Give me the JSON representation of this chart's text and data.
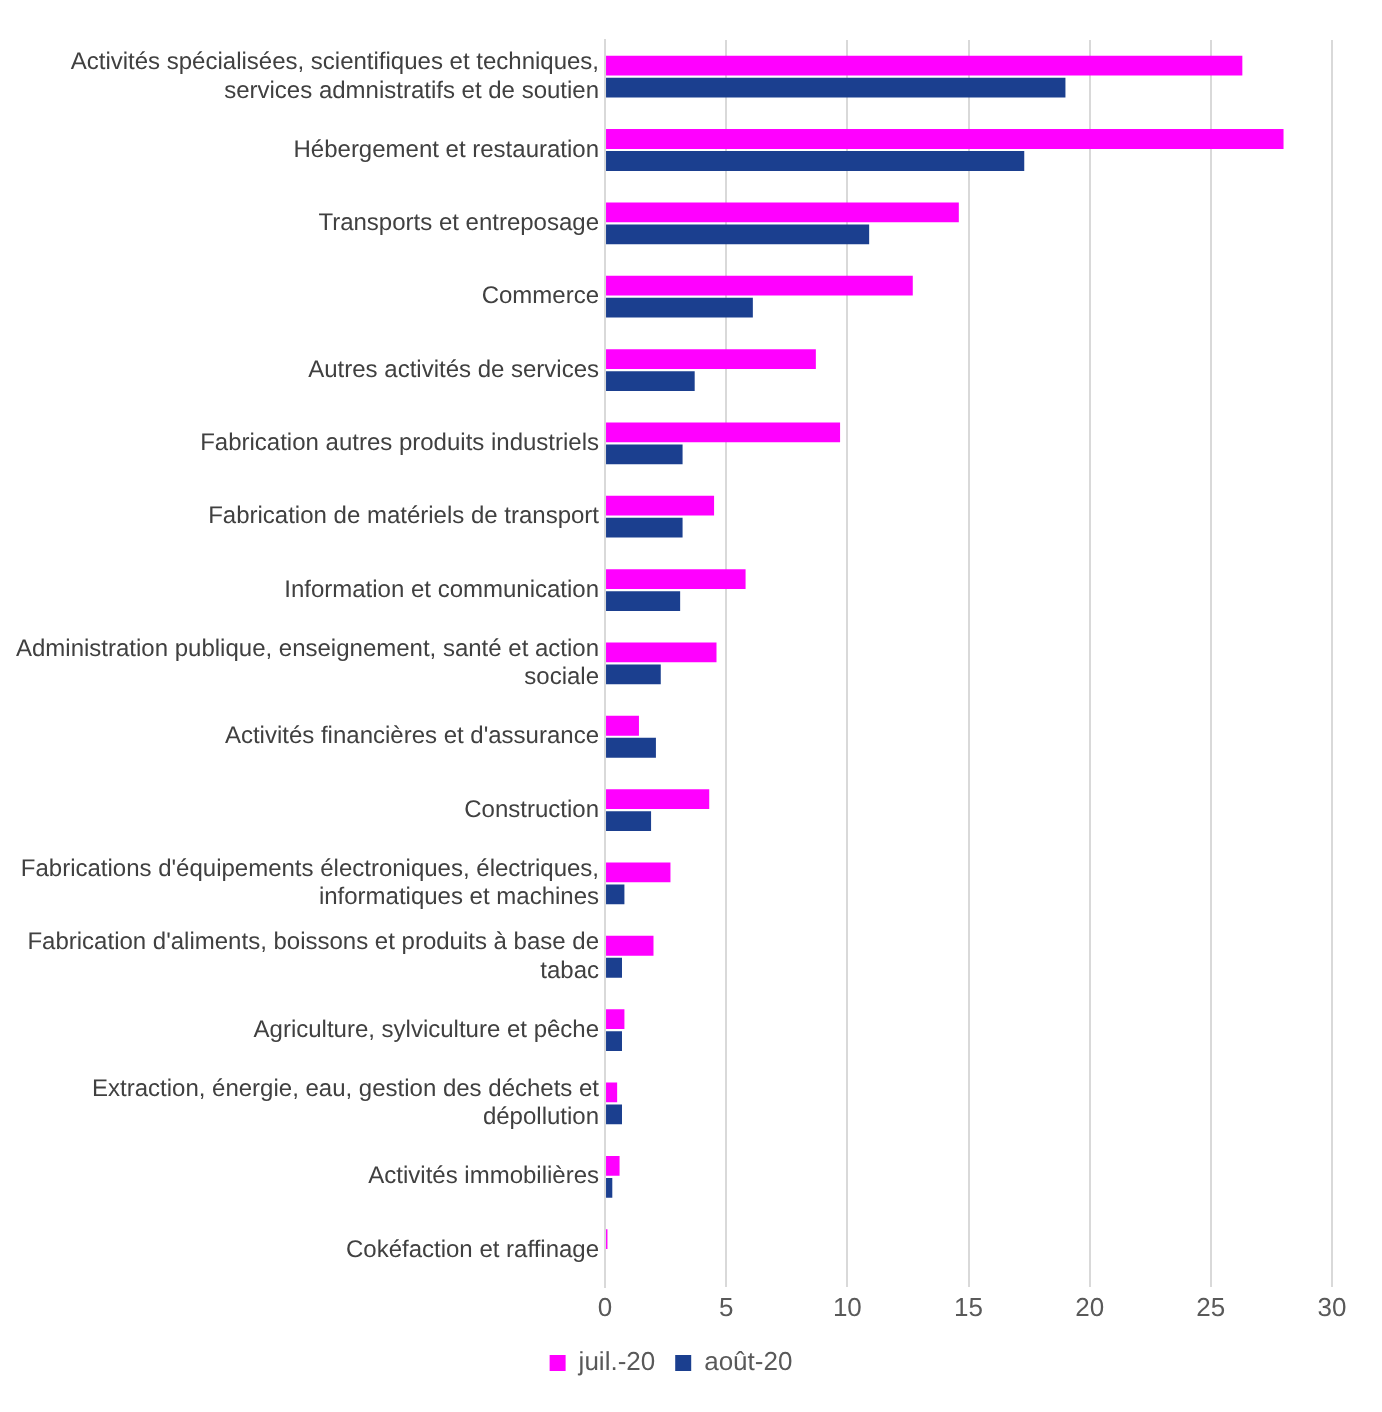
{
  "chart_data": {
    "type": "bar",
    "orientation": "horizontal",
    "categories": [
      "Activités spécialisées, scientifiques et techniques, services admnistratifs et de soutien",
      "Hébergement et restauration",
      "Transports et entreposage",
      "Commerce",
      "Autres activités de services",
      "Fabrication autres produits industriels",
      "Fabrication de matériels de transport",
      "Information et communication",
      "Administration publique, enseignement, santé et action sociale",
      "Activités financières et d'assurance",
      "Construction",
      "Fabrications d'équipements électroniques, électriques, informatiques et machines",
      "Fabrication d'aliments, boissons et produits à base de tabac",
      "Agriculture, sylviculture et pêche",
      "Extraction, énergie, eau, gestion des déchets et dépollution",
      "Activités immobilières",
      "Cokéfaction et raffinage"
    ],
    "series": [
      {
        "name": "juil.-20",
        "color": "#ff00ff",
        "values": [
          26.3,
          28.0,
          14.6,
          12.7,
          8.7,
          9.7,
          4.5,
          5.8,
          4.6,
          1.4,
          4.3,
          2.7,
          2.0,
          0.8,
          0.5,
          0.6,
          0.1
        ]
      },
      {
        "name": "août-20",
        "color": "#1b3f8f",
        "values": [
          19.0,
          17.3,
          10.9,
          6.1,
          3.7,
          3.2,
          3.2,
          3.1,
          2.3,
          2.1,
          1.9,
          0.8,
          0.7,
          0.7,
          0.7,
          0.3,
          0
        ]
      }
    ],
    "xlim": [
      0,
      30
    ],
    "xticks": [
      0,
      5,
      10,
      15,
      20,
      25,
      30
    ],
    "grid": "x",
    "legend": "bottom"
  }
}
